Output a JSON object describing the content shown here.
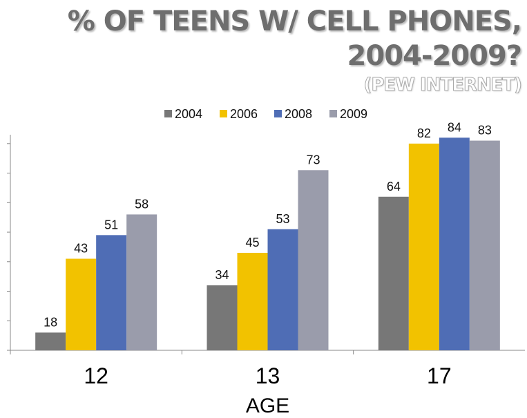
{
  "chart_data": {
    "type": "bar",
    "title": "% OF TEENS W/ CELL PHONES, 2004-2009?",
    "title_line1": "% OF TEENS W/ CELL PHONES,",
    "title_line2": "2004-2009?",
    "subtitle": "(PEW INTERNET)",
    "xlabel": "AGE",
    "ylabel": "",
    "categories": [
      "12",
      "13",
      "17"
    ],
    "series": [
      {
        "name": "2004",
        "values": [
          18,
          34,
          64
        ],
        "color": "#777777"
      },
      {
        "name": "2006",
        "values": [
          43,
          45,
          82
        ],
        "color": "#f2c200"
      },
      {
        "name": "2008",
        "values": [
          51,
          53,
          84
        ],
        "color": "#4f6db5"
      },
      {
        "name": "2009",
        "values": [
          58,
          73,
          83
        ],
        "color": "#9a9cab"
      }
    ],
    "ylim": [
      12,
      85
    ],
    "y_tick_labels_shown": false,
    "data_labels": true,
    "grid": false,
    "legend": "top"
  }
}
